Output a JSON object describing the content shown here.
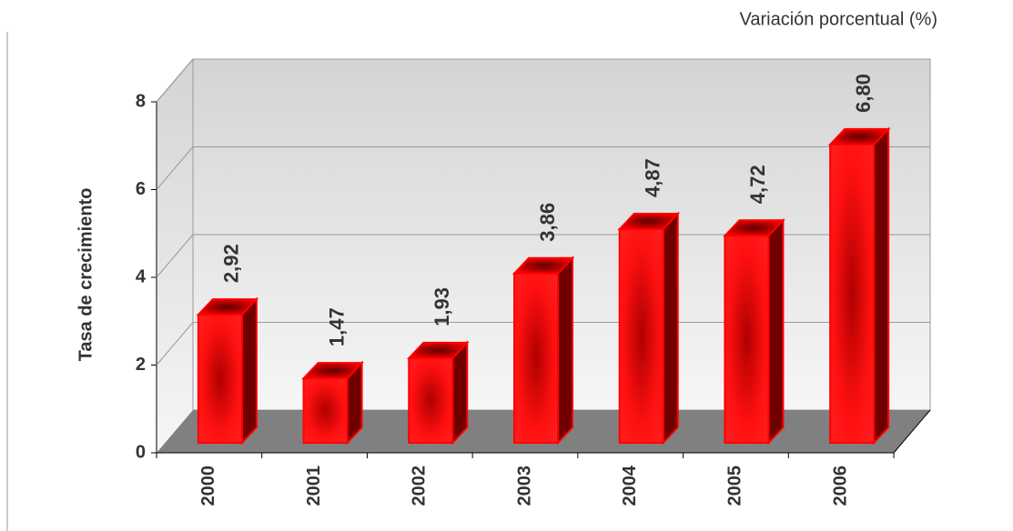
{
  "chart_data": {
    "type": "bar3d",
    "title": "Variación porcentual (%)",
    "y_label": "Tasa de crecimiento",
    "categories": [
      "2000",
      "2001",
      "2002",
      "2003",
      "2004",
      "2005",
      "2006"
    ],
    "values": [
      2.92,
      1.47,
      1.93,
      3.86,
      4.87,
      4.72,
      6.8
    ],
    "value_labels": [
      "2,92",
      "1,47",
      "1,93",
      "3,86",
      "4,87",
      "4,72",
      "6,80"
    ],
    "color": "#ff0000",
    "ylim": [
      0,
      8
    ],
    "yticks": [
      0,
      2,
      4,
      6,
      8
    ],
    "grid": true
  }
}
